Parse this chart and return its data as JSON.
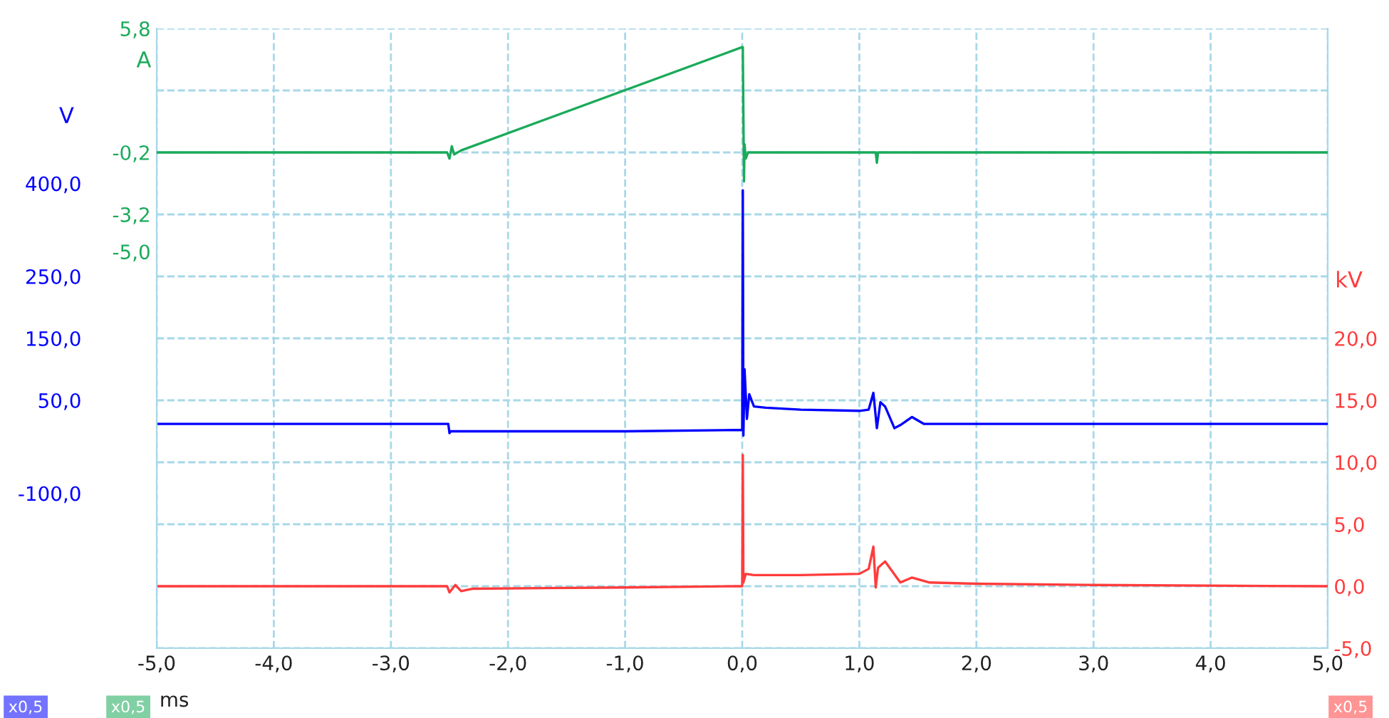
{
  "chart_data": {
    "type": "line",
    "xlabel": "ms",
    "ylabel": "V",
    "y2label": "kV",
    "y3label": "A",
    "xlim": [
      -5,
      5
    ],
    "xticks": [
      {
        "value": -5,
        "label": "-5,0"
      },
      {
        "value": -4,
        "label": "-4,0"
      },
      {
        "value": -3,
        "label": "-3,0"
      },
      {
        "value": -2,
        "label": "-2,0"
      },
      {
        "value": -1,
        "label": "-1,0"
      },
      {
        "value": 0,
        "label": "0,0"
      },
      {
        "value": 1,
        "label": "1,0"
      },
      {
        "value": 2,
        "label": "2,0"
      },
      {
        "value": 3,
        "label": "3,0"
      },
      {
        "value": 4,
        "label": "4,0"
      },
      {
        "value": 5,
        "label": "5,0"
      }
    ],
    "ylim": [
      -350,
      650
    ],
    "yticks": [
      {
        "value": 400,
        "label": "400,0"
      },
      {
        "value": 250,
        "label": "250,0"
      },
      {
        "value": 150,
        "label": "150,0"
      },
      {
        "value": 50,
        "label": "50,0"
      },
      {
        "value": -100,
        "label": "-100,0"
      }
    ],
    "y2lim": [
      -5,
      45
    ],
    "y2ticks": [
      {
        "value": -5,
        "label": "-5,0"
      },
      {
        "value": 0,
        "label": "0,0"
      },
      {
        "value": 5,
        "label": "5,0"
      },
      {
        "value": 10,
        "label": "10,0"
      },
      {
        "value": 15,
        "label": "15,0"
      },
      {
        "value": 20,
        "label": "20,0"
      },
      {
        "value": 25,
        "label": null
      },
      {
        "value": 30,
        "label": null
      },
      {
        "value": 35,
        "label": null
      },
      {
        "value": 40,
        "label": null
      },
      {
        "value": 45,
        "label": null
      }
    ],
    "y3lim": [
      -24.2,
      5.8
    ],
    "y3ticks": [
      {
        "value": 5.8,
        "label": "5,8"
      },
      {
        "value": -0.2,
        "label": "-0,2"
      },
      {
        "value": -3.2,
        "label": "-3,2"
      },
      {
        "value": -5.0,
        "label": "-5,0"
      }
    ],
    "grid": true,
    "line_style": "solid",
    "marker": "none",
    "annotations": [
      "x0,5",
      "x0,5",
      "x0,5"
    ],
    "series": [
      {
        "axis": "y3",
        "color": "#1aaa5a",
        "x": [
          -5,
          -2.52,
          -2.5,
          -2.48,
          -2.46,
          -2.4,
          0.0,
          0.005,
          0.01,
          0.015,
          0.02,
          0.03,
          0.05,
          1.14,
          1.15,
          1.16,
          1.3,
          5
        ],
        "values": [
          -0.2,
          -0.2,
          -0.5,
          0.1,
          -0.3,
          -0.1,
          4.9,
          4.9,
          1.7,
          -1.6,
          0.2,
          -0.5,
          -0.2,
          -0.2,
          -0.7,
          -0.2,
          -0.2,
          -0.2
        ]
      },
      {
        "axis": "y",
        "color": "#0000ff",
        "x": [
          -5,
          -2.51,
          -2.5,
          -2.49,
          -1.0,
          -0.05,
          0.0,
          0.005,
          0.01,
          0.02,
          0.04,
          0.06,
          0.1,
          0.2,
          0.5,
          1.0,
          1.08,
          1.12,
          1.15,
          1.18,
          1.22,
          1.3,
          1.35,
          1.45,
          1.55,
          5
        ],
        "values": [
          12,
          12,
          -3,
          0,
          0,
          2,
          2,
          389,
          -7,
          100,
          20,
          60,
          40,
          38,
          35,
          33,
          35,
          62,
          5,
          47,
          40,
          5,
          10,
          23,
          12,
          12
        ]
      },
      {
        "axis": "y2",
        "color": "#ff3c3c",
        "x": [
          -5,
          -2.52,
          -2.5,
          -2.45,
          -2.4,
          -2.3,
          -1.0,
          -0.05,
          0.0,
          0.005,
          0.01,
          0.03,
          0.1,
          0.2,
          0.5,
          1.0,
          1.08,
          1.12,
          1.14,
          1.16,
          1.22,
          1.35,
          1.45,
          1.6,
          2.0,
          3.0,
          5
        ],
        "values": [
          0,
          0,
          -0.5,
          0.1,
          -0.4,
          -0.2,
          -0.1,
          0.0,
          0.0,
          10.6,
          0.3,
          1.0,
          0.9,
          0.9,
          0.9,
          1.0,
          1.4,
          3.2,
          -0.1,
          1.5,
          2.0,
          0.3,
          0.7,
          0.3,
          0.2,
          0.1,
          0.0
        ]
      }
    ]
  }
}
